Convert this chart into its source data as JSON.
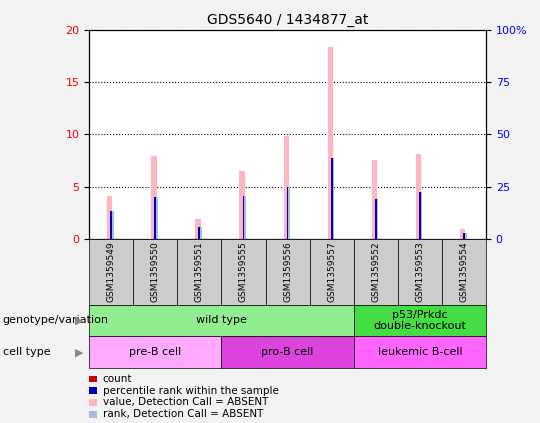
{
  "title": "GDS5640 / 1434877_at",
  "samples": [
    "GSM1359549",
    "GSM1359550",
    "GSM1359551",
    "GSM1359555",
    "GSM1359556",
    "GSM1359557",
    "GSM1359552",
    "GSM1359553",
    "GSM1359554"
  ],
  "count_values": [
    0,
    0,
    0,
    0,
    0,
    0,
    0,
    0,
    0
  ],
  "rank_values": [
    2.7,
    4.0,
    1.1,
    4.1,
    5.0,
    7.7,
    3.8,
    4.5,
    0.6
  ],
  "absent_value_values": [
    4.1,
    7.9,
    1.9,
    6.5,
    9.8,
    18.3,
    7.5,
    8.1,
    1.0
  ],
  "absent_rank_values": [
    2.7,
    4.0,
    1.1,
    4.1,
    5.0,
    7.7,
    3.8,
    4.5,
    0.6
  ],
  "ylim_left": [
    0,
    20
  ],
  "ylim_right": [
    0,
    100
  ],
  "yticks_left": [
    0,
    5,
    10,
    15,
    20
  ],
  "yticks_right": [
    0,
    25,
    50,
    75,
    100
  ],
  "ytick_labels_right": [
    "0",
    "25",
    "50",
    "75",
    "100%"
  ],
  "genotype_groups": [
    {
      "label": "wild type",
      "start": 0,
      "end": 6,
      "color": "#90EE90"
    },
    {
      "label": "p53/Prkdc\ndouble-knockout",
      "start": 6,
      "end": 9,
      "color": "#44DD44"
    }
  ],
  "cell_type_colors": [
    "#FFAAFF",
    "#DD44DD",
    "#FF66FF"
  ],
  "cell_type_labels": [
    "pre-B cell",
    "pro-B cell",
    "leukemic B-cell"
  ],
  "cell_type_starts": [
    0,
    3,
    6
  ],
  "cell_type_ends": [
    3,
    6,
    9
  ],
  "count_color": "#CC0000",
  "rank_color": "#0000BB",
  "absent_value_color": "#FFB6C1",
  "absent_rank_color": "#AABBDD",
  "legend_items": [
    {
      "label": "count",
      "color": "#CC0000"
    },
    {
      "label": "percentile rank within the sample",
      "color": "#0000BB"
    },
    {
      "label": "value, Detection Call = ABSENT",
      "color": "#FFB6C1"
    },
    {
      "label": "rank, Detection Call = ABSENT",
      "color": "#AABBDD"
    }
  ],
  "label_row1": "genotype/variation",
  "label_row2": "cell type",
  "sample_bg_color": "#CCCCCC",
  "fig_bg_color": "#F2F2F2"
}
